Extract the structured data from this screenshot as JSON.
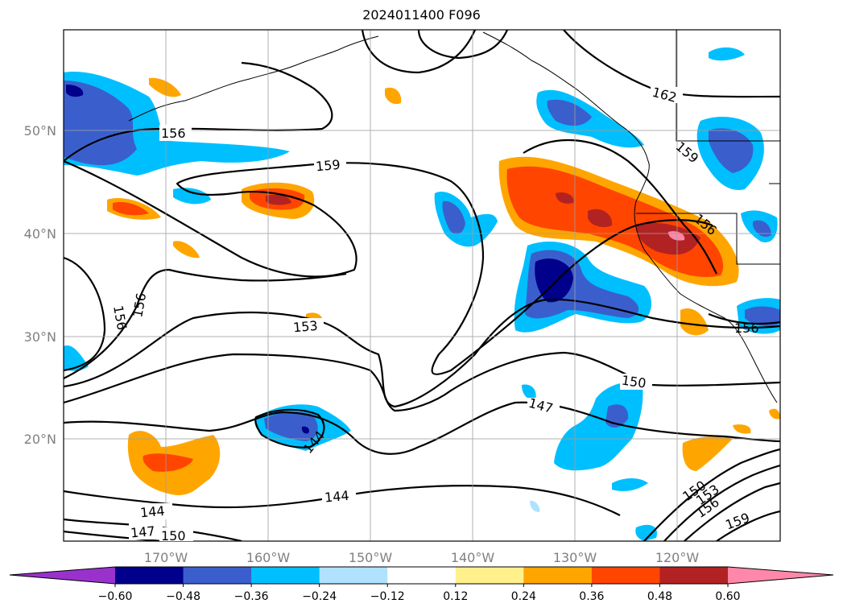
{
  "title": "2024011400 F096",
  "map": {
    "lon_ticks": [
      "170°W",
      "160°W",
      "150°W",
      "140°W",
      "130°W",
      "120°W"
    ],
    "lat_ticks": [
      "50°N",
      "40°N",
      "30°N",
      "20°N"
    ],
    "contour_labels": [
      "162",
      "159",
      "156",
      "156",
      "159",
      "156",
      "153",
      "150",
      "147",
      "144",
      "144",
      "144",
      "147",
      "150",
      "150",
      "153",
      "156",
      "159",
      "156"
    ]
  },
  "colorbar": {
    "ticks": [
      "−0.60",
      "−0.48",
      "−0.36",
      "−0.24",
      "−0.12",
      "0.12",
      "0.24",
      "0.36",
      "0.48",
      "0.60"
    ],
    "colors": [
      "#9932cc",
      "#00008b",
      "#3a5fcd",
      "#00bfff",
      "#b0e2ff",
      "#ffffff",
      "#fff08c",
      "#ffa500",
      "#ff4500",
      "#b22222",
      "#ff88aa"
    ]
  }
}
